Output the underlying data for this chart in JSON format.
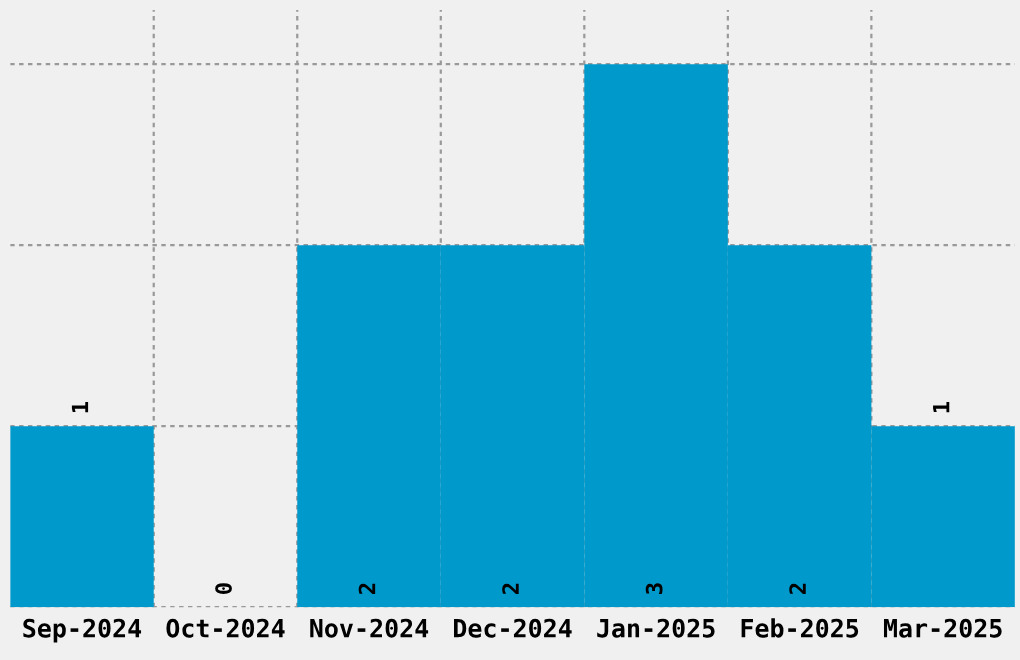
{
  "chart_data": {
    "type": "bar",
    "categories": [
      "Sep-2024",
      "Oct-2024",
      "Nov-2024",
      "Dec-2024",
      "Jan-2025",
      "Feb-2025",
      "Mar-2025"
    ],
    "values": [
      1,
      0,
      2,
      2,
      3,
      2,
      1
    ],
    "color": "#0099cc",
    "ylim": [
      0,
      3.3
    ],
    "data_labels": true,
    "grid": true,
    "tick_labels": "x"
  }
}
